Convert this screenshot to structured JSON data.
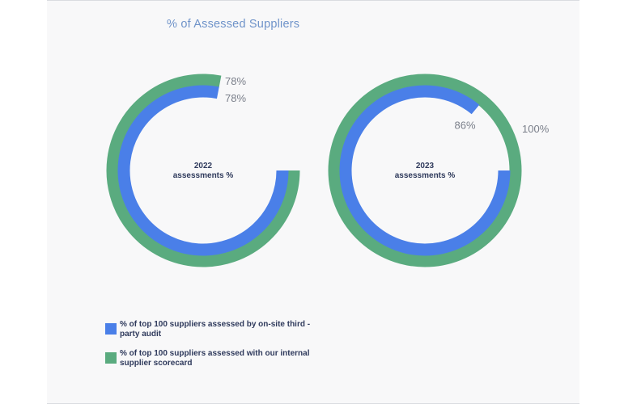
{
  "colors": {
    "blue": "#4a7fe8",
    "green": "#5aab7f"
  },
  "chart_data": {
    "type": "radial-bar",
    "title": "% of Assessed Suppliers",
    "series": [
      {
        "name": "% of top 100 suppliers assessed by on-site third -party audit"
      },
      {
        "name": "% of top 100 suppliers assessed with our internal supplier scorecard"
      }
    ],
    "charts": [
      {
        "label_line1": "2022",
        "label_line2": "assessments %",
        "values": [
          78,
          78
        ],
        "value_labels": [
          "78%",
          "78%"
        ]
      },
      {
        "label_line1": "2023",
        "label_line2": "assessments %",
        "values": [
          86,
          100
        ],
        "value_labels": [
          "86%",
          "100%"
        ]
      }
    ]
  }
}
